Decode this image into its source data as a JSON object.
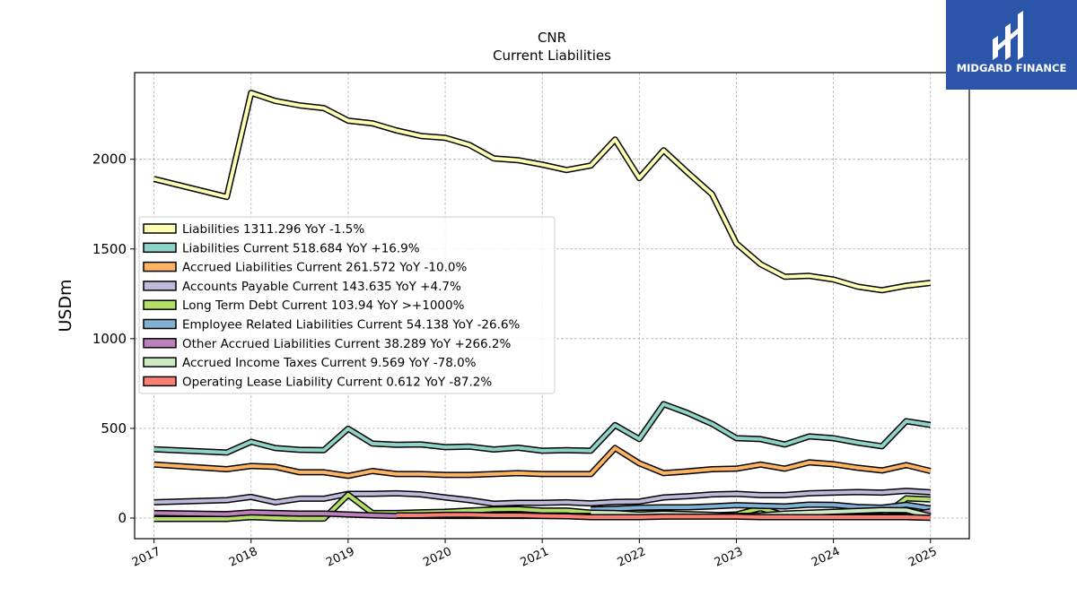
{
  "brand": {
    "name": "MIDGARD FINANCE",
    "bg_color": "#2b55a8"
  },
  "chart_data": {
    "type": "line",
    "title": "CNR",
    "subtitle": "Current  Liabilities",
    "ylabel": "USDm",
    "xlabel": "",
    "xlim": [
      2016.8,
      2025.4
    ],
    "ylim": [
      -115,
      2483
    ],
    "yticks": [
      0,
      500,
      1000,
      1500,
      2000
    ],
    "xticks": [
      "2017",
      "2018",
      "2019",
      "2020",
      "2021",
      "2022",
      "2023",
      "2024",
      "2025"
    ],
    "grid": true,
    "legend_position": "upper-left",
    "series": [
      {
        "name": "Liabilities",
        "legend": "Liabilities  1311.296 YoY -1.5%",
        "color": "#ffffb3",
        "x": [
          2017.0,
          2017.75,
          2018.0,
          2018.25,
          2018.5,
          2018.75,
          2019.0,
          2019.25,
          2019.5,
          2019.75,
          2020.0,
          2020.25,
          2020.5,
          2020.75,
          2021.0,
          2021.25,
          2021.5,
          2021.75,
          2022.0,
          2022.25,
          2022.5,
          2022.75,
          2023.0,
          2023.25,
          2023.5,
          2023.75,
          2024.0,
          2024.25,
          2024.5,
          2024.75,
          2025.0
        ],
        "y": [
          1890,
          1790,
          2370,
          2325,
          2300,
          2285,
          2215,
          2200,
          2160,
          2130,
          2120,
          2080,
          2005,
          1995,
          1970,
          1940,
          1965,
          2110,
          1895,
          2050,
          1925,
          1805,
          1530,
          1415,
          1345,
          1350,
          1330,
          1290,
          1270,
          1295,
          1311
        ]
      },
      {
        "name": "Liabilities Current",
        "legend": "Liabilities Current  518.684 YoY +16.9%",
        "color": "#8dd3c7",
        "x": [
          2017.0,
          2017.75,
          2018.0,
          2018.25,
          2018.5,
          2018.75,
          2019.0,
          2019.25,
          2019.5,
          2019.75,
          2020.0,
          2020.25,
          2020.5,
          2020.75,
          2021.0,
          2021.25,
          2021.5,
          2021.75,
          2022.0,
          2022.25,
          2022.5,
          2022.75,
          2023.0,
          2023.25,
          2023.5,
          2023.75,
          2024.0,
          2024.25,
          2024.5,
          2024.75,
          2025.0
        ],
        "y": [
          383,
          365,
          425,
          390,
          380,
          378,
          498,
          415,
          408,
          410,
          395,
          398,
          382,
          392,
          375,
          378,
          375,
          518,
          440,
          635,
          585,
          525,
          445,
          440,
          410,
          455,
          445,
          420,
          400,
          540,
          519
        ]
      },
      {
        "name": "Accrued Liabilities Current",
        "legend": "Accrued Liabilities Current  261.572 YoY -10.0%",
        "color": "#fdb462",
        "x": [
          2017.0,
          2017.75,
          2018.0,
          2018.25,
          2018.5,
          2018.75,
          2019.0,
          2019.25,
          2019.5,
          2019.75,
          2020.0,
          2020.25,
          2020.5,
          2020.75,
          2021.0,
          2021.25,
          2021.5,
          2021.75,
          2022.0,
          2022.25,
          2022.5,
          2022.75,
          2023.0,
          2023.25,
          2023.5,
          2023.75,
          2024.0,
          2024.25,
          2024.5,
          2024.75,
          2025.0
        ],
        "y": [
          298,
          272,
          290,
          285,
          255,
          255,
          235,
          262,
          245,
          245,
          240,
          240,
          245,
          250,
          245,
          245,
          245,
          390,
          305,
          250,
          260,
          272,
          275,
          298,
          275,
          310,
          300,
          280,
          265,
          295,
          262
        ]
      },
      {
        "name": "Accounts Payable Current",
        "legend": "Accounts Payable Current  143.635 YoY +4.7%",
        "color": "#bebada",
        "x": [
          2017.0,
          2017.75,
          2018.0,
          2018.25,
          2018.5,
          2018.75,
          2019.0,
          2019.25,
          2019.5,
          2019.75,
          2020.0,
          2020.25,
          2020.5,
          2020.75,
          2021.0,
          2021.25,
          2021.5,
          2021.75,
          2022.0,
          2022.25,
          2022.5,
          2022.75,
          2023.0,
          2023.25,
          2023.5,
          2023.75,
          2024.0,
          2024.25,
          2024.5,
          2024.75,
          2025.0
        ],
        "y": [
          88,
          100,
          118,
          88,
          108,
          108,
          135,
          135,
          138,
          132,
          115,
          100,
          80,
          85,
          85,
          88,
          82,
          90,
          92,
          115,
          122,
          132,
          135,
          128,
          128,
          138,
          142,
          145,
          142,
          152,
          144
        ]
      },
      {
        "name": "Long Term Debt Current",
        "legend": "Long Term Debt Current  103.94 YoY >+1000%",
        "color": "#b3de69",
        "x": [
          2017.0,
          2017.75,
          2018.0,
          2018.25,
          2018.5,
          2018.75,
          2019.0,
          2019.25,
          2019.5,
          2019.75,
          2020.0,
          2020.25,
          2020.5,
          2020.75,
          2021.0,
          2021.25,
          2021.5,
          2021.75,
          2022.0,
          2022.25,
          2022.5,
          2022.75,
          2023.0,
          2023.25,
          2023.5,
          2023.75,
          2024.0,
          2024.25,
          2024.5,
          2024.75,
          2025.0
        ],
        "y": [
          -5,
          -5,
          5,
          0,
          -3,
          -3,
          130,
          28,
          28,
          32,
          35,
          42,
          48,
          50,
          42,
          42,
          30,
          30,
          30,
          30,
          15,
          15,
          20,
          55,
          15,
          15,
          15,
          15,
          10,
          110,
          104
        ]
      },
      {
        "name": "Employee Related Liabilities Current",
        "legend": "Employee Related Liabilities Current  54.138 YoY -26.6%",
        "color": "#80b1d3",
        "x": [
          2021.5,
          2021.75,
          2022.0,
          2022.25,
          2022.5,
          2022.75,
          2023.0,
          2023.25,
          2023.5,
          2023.75,
          2024.0,
          2024.25,
          2024.5,
          2024.75,
          2025.0
        ],
        "y": [
          48,
          52,
          58,
          60,
          60,
          65,
          72,
          68,
          65,
          75,
          74,
          62,
          58,
          74,
          54
        ]
      },
      {
        "name": "Other Accrued Liabilities Current",
        "legend": "Other Accrued Liabilities Current  38.289 YoY +266.2%",
        "color": "#bc80bd",
        "x": [
          2017.0,
          2017.75,
          2018.0,
          2018.25,
          2018.5,
          2018.75,
          2019.0,
          2019.25,
          2019.5,
          2019.75,
          2020.0,
          2020.25,
          2020.5,
          2020.75,
          2021.0,
          2021.25,
          2021.5,
          2021.75,
          2022.0,
          2022.25,
          2022.5,
          2022.75,
          2023.0,
          2023.25,
          2023.5,
          2023.75,
          2024.0,
          2024.25,
          2024.5,
          2024.75,
          2025.0
        ],
        "y": [
          28,
          22,
          32,
          28,
          25,
          25,
          20,
          15,
          12,
          12,
          12,
          12,
          12,
          12,
          12,
          12,
          12,
          12,
          12,
          12,
          10,
          12,
          12,
          12,
          10,
          10,
          10,
          8,
          8,
          12,
          38
        ]
      },
      {
        "name": "Accrued Income Taxes Current",
        "legend": "Accrued Income Taxes Current  9.569 YoY -78.0%",
        "color": "#ccebc5",
        "x": [
          2021.5,
          2021.75,
          2022.0,
          2022.25,
          2022.5,
          2022.75,
          2023.0,
          2023.25,
          2023.5,
          2023.75,
          2024.0,
          2024.25,
          2024.5,
          2024.75,
          2025.0
        ],
        "y": [
          30,
          28,
          20,
          25,
          22,
          18,
          10,
          15,
          25,
          30,
          35,
          40,
          45,
          44,
          10
        ]
      },
      {
        "name": "Operating Lease Liability Current",
        "legend": "Operating Lease Liability Current  0.612 YoY -87.2%",
        "color": "#fb8072",
        "x": [
          2019.5,
          2019.75,
          2020.0,
          2020.25,
          2020.5,
          2020.75,
          2021.0,
          2021.25,
          2021.5,
          2021.75,
          2022.0,
          2022.25,
          2022.5,
          2022.75,
          2023.0,
          2023.25,
          2023.5,
          2023.75,
          2024.0,
          2024.25,
          2024.5,
          2024.75,
          2025.0
        ],
        "y": [
          15,
          15,
          18,
          18,
          15,
          15,
          12,
          10,
          5,
          5,
          5,
          8,
          8,
          8,
          8,
          5,
          5,
          5,
          5,
          5,
          5,
          5,
          1
        ]
      }
    ]
  }
}
